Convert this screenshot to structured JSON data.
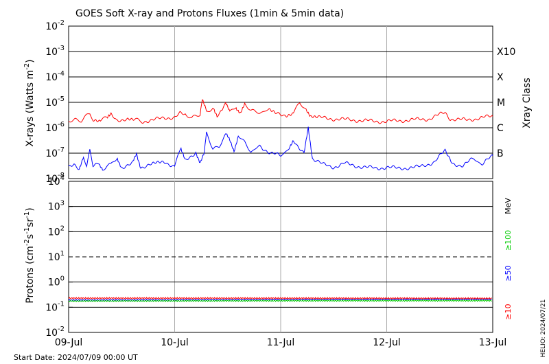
{
  "chart_data": {
    "type": "line",
    "title": "GOES Soft X-ray and Protons Fluxes   (1min & 5min data)",
    "start_date": "Start Date: 2024/07/09 00:00 UT",
    "helio_stamp": "HELIO: 2024/07/21",
    "x_ticks": [
      "09-Jul",
      "10-Jul",
      "11-Jul",
      "12-Jul",
      "13-Jul"
    ],
    "xray_panel": {
      "ylabel": "X-rays (Watts m",
      "ylabel_sup": "-2",
      "ylabel_tail": ")",
      "ylim_log10": [
        -8,
        -2
      ],
      "yticks_exp": [
        "-2",
        "-3",
        "-4",
        "-5",
        "-6",
        "-7",
        "-8"
      ],
      "class_labels": [
        "X10",
        "X",
        "M",
        "C",
        "B"
      ],
      "class_title": "Xray Class",
      "series": [
        {
          "color": "#ff0000",
          "points_day_logflux": [
            [
              0.0,
              -5.75
            ],
            [
              0.06,
              -5.65
            ],
            [
              0.12,
              -5.7
            ],
            [
              0.2,
              -5.45
            ],
            [
              0.23,
              -5.65
            ],
            [
              0.3,
              -5.7
            ],
            [
              0.36,
              -5.6
            ],
            [
              0.4,
              -5.5
            ],
            [
              0.45,
              -5.7
            ],
            [
              0.55,
              -5.65
            ],
            [
              0.62,
              -5.7
            ],
            [
              0.7,
              -5.75
            ],
            [
              0.8,
              -5.7
            ],
            [
              0.9,
              -5.6
            ],
            [
              1.0,
              -5.6
            ],
            [
              1.05,
              -5.45
            ],
            [
              1.1,
              -5.5
            ],
            [
              1.16,
              -5.65
            ],
            [
              1.24,
              -5.45
            ],
            [
              1.26,
              -4.85
            ],
            [
              1.3,
              -5.35
            ],
            [
              1.36,
              -5.2
            ],
            [
              1.4,
              -5.5
            ],
            [
              1.45,
              -5.3
            ],
            [
              1.48,
              -5.05
            ],
            [
              1.52,
              -5.4
            ],
            [
              1.58,
              -5.2
            ],
            [
              1.62,
              -5.4
            ],
            [
              1.66,
              -5.1
            ],
            [
              1.72,
              -5.35
            ],
            [
              1.8,
              -5.4
            ],
            [
              1.88,
              -5.3
            ],
            [
              1.95,
              -5.45
            ],
            [
              2.05,
              -5.5
            ],
            [
              2.12,
              -5.4
            ],
            [
              2.18,
              -5.05
            ],
            [
              2.24,
              -5.35
            ],
            [
              2.28,
              -5.55
            ],
            [
              2.35,
              -5.6
            ],
            [
              2.5,
              -5.65
            ],
            [
              2.7,
              -5.7
            ],
            [
              2.9,
              -5.75
            ],
            [
              3.0,
              -5.75
            ],
            [
              3.2,
              -5.7
            ],
            [
              3.4,
              -5.65
            ],
            [
              3.55,
              -5.4
            ],
            [
              3.6,
              -5.65
            ],
            [
              3.75,
              -5.7
            ],
            [
              3.9,
              -5.6
            ],
            [
              4.0,
              -5.55
            ]
          ]
        },
        {
          "color": "#0000ff",
          "points_day_logflux": [
            [
              0.0,
              -7.55
            ],
            [
              0.05,
              -7.4
            ],
            [
              0.1,
              -7.6
            ],
            [
              0.14,
              -7.1
            ],
            [
              0.17,
              -7.5
            ],
            [
              0.2,
              -6.85
            ],
            [
              0.23,
              -7.45
            ],
            [
              0.28,
              -7.35
            ],
            [
              0.32,
              -7.6
            ],
            [
              0.4,
              -7.45
            ],
            [
              0.46,
              -7.2
            ],
            [
              0.5,
              -7.55
            ],
            [
              0.6,
              -7.4
            ],
            [
              0.64,
              -7.0
            ],
            [
              0.68,
              -7.55
            ],
            [
              0.78,
              -7.45
            ],
            [
              0.9,
              -7.35
            ],
            [
              1.0,
              -7.5
            ],
            [
              1.06,
              -6.8
            ],
            [
              1.1,
              -7.3
            ],
            [
              1.2,
              -6.95
            ],
            [
              1.24,
              -7.35
            ],
            [
              1.28,
              -7.0
            ],
            [
              1.3,
              -6.2
            ],
            [
              1.36,
              -6.8
            ],
            [
              1.42,
              -6.7
            ],
            [
              1.48,
              -6.25
            ],
            [
              1.52,
              -6.5
            ],
            [
              1.56,
              -6.9
            ],
            [
              1.6,
              -6.3
            ],
            [
              1.66,
              -6.6
            ],
            [
              1.72,
              -7.0
            ],
            [
              1.8,
              -6.7
            ],
            [
              1.9,
              -7.0
            ],
            [
              2.0,
              -7.1
            ],
            [
              2.08,
              -6.8
            ],
            [
              2.12,
              -6.45
            ],
            [
              2.17,
              -6.8
            ],
            [
              2.22,
              -7.05
            ],
            [
              2.26,
              -6.0
            ],
            [
              2.3,
              -7.2
            ],
            [
              2.4,
              -7.45
            ],
            [
              2.5,
              -7.55
            ],
            [
              2.6,
              -7.4
            ],
            [
              2.7,
              -7.5
            ],
            [
              2.8,
              -7.55
            ],
            [
              2.9,
              -7.6
            ],
            [
              3.0,
              -7.55
            ],
            [
              3.1,
              -7.6
            ],
            [
              3.3,
              -7.55
            ],
            [
              3.45,
              -7.35
            ],
            [
              3.55,
              -6.9
            ],
            [
              3.62,
              -7.4
            ],
            [
              3.72,
              -7.5
            ],
            [
              3.82,
              -7.2
            ],
            [
              3.9,
              -7.45
            ],
            [
              4.0,
              -7.1
            ]
          ]
        }
      ]
    },
    "proton_panel": {
      "ylabel": "Protons (cm",
      "ylabel_sup1": "-2",
      "ylabel_mid": "s",
      "ylabel_sup2": "-1",
      "ylabel_mid2": "sr",
      "ylabel_sup3": "-1",
      "ylabel_tail": ")",
      "ylim_log10": [
        -2,
        4
      ],
      "yticks_exp": [
        "4",
        "3",
        "2",
        "1",
        "0",
        "-1",
        "-2"
      ],
      "threshold_log10": 1,
      "energy_labels": [
        {
          "text": "MeV",
          "color": "#000000"
        },
        {
          "text": "≥100",
          "color": "#00cc00"
        },
        {
          "text": "≥50",
          "color": "#0000ff"
        },
        {
          "text": "≥10",
          "color": "#ff0000"
        }
      ],
      "series": [
        {
          "color": "#0000ff",
          "level_log10": -0.72
        },
        {
          "color": "#00cc00",
          "level_log10": -0.78
        },
        {
          "color": "#ff0000",
          "level_log10": -0.68
        }
      ]
    }
  }
}
